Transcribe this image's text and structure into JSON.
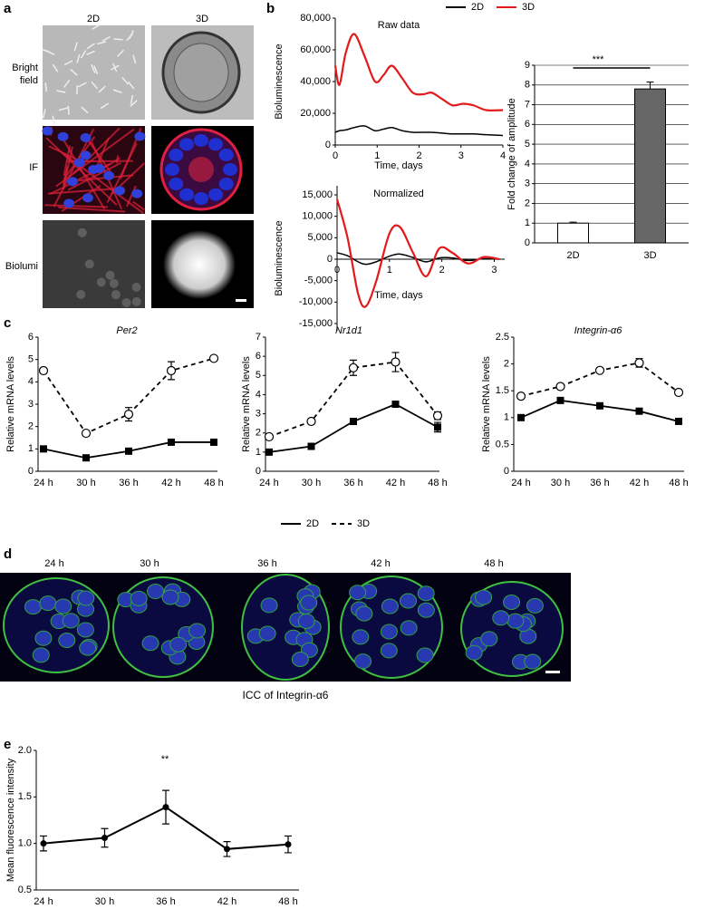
{
  "figure": {
    "panel_labels": [
      "a",
      "b",
      "c",
      "d",
      "e"
    ],
    "a": {
      "columns": [
        "2D",
        "3D"
      ],
      "rows": [
        "Bright field",
        "IF",
        "Biolumi"
      ]
    },
    "d": {
      "times": [
        "24 h",
        "30 h",
        "36 h",
        "42 h",
        "48 h"
      ],
      "caption": "ICC of Integrin-α6"
    }
  },
  "chart_data": [
    {
      "type": "line",
      "title": "Raw data",
      "x_label": "Time, days",
      "y_label": "Bioluminescence",
      "x": [
        0,
        0.1,
        0.25,
        0.45,
        0.7,
        0.95,
        1.15,
        1.35,
        1.6,
        1.85,
        2.1,
        2.3,
        2.55,
        2.8,
        3.05,
        3.3,
        3.6,
        4
      ],
      "series": [
        {
          "name": "2D",
          "color": "#000000",
          "values": [
            8000,
            9000,
            9500,
            11000,
            12000,
            9000,
            10000,
            11000,
            9000,
            8000,
            8000,
            8000,
            7500,
            7000,
            7000,
            7000,
            6500,
            6000
          ]
        },
        {
          "name": "3D",
          "color": "#e31a1c",
          "values": [
            50000,
            38000,
            58000,
            70000,
            56000,
            40000,
            44000,
            50000,
            42000,
            33000,
            32000,
            33000,
            29000,
            25000,
            26000,
            25000,
            22000,
            22000
          ]
        }
      ],
      "xlim": [
        0,
        4
      ],
      "xticks": [
        0,
        1,
        2,
        3,
        4
      ],
      "ylim": [
        0,
        80000
      ],
      "yticks": [
        0,
        {
          "value": 20000,
          "label": "20,000"
        },
        {
          "value": 40000,
          "label": "40,000"
        },
        {
          "value": 60000,
          "label": "60,000"
        },
        {
          "value": 80000,
          "label": "80,000"
        }
      ]
    },
    {
      "type": "line",
      "title": "Normalized",
      "x_label": "Time, days",
      "y_label": "Bioluminescence",
      "x": [
        0,
        0.2,
        0.4,
        0.55,
        0.75,
        1.0,
        1.2,
        1.45,
        1.7,
        1.95,
        2.2,
        2.5,
        2.8,
        3.1
      ],
      "series": [
        {
          "color": "#000000",
          "values": [
            1500,
            800,
            -600,
            -1200,
            -600,
            700,
            1200,
            400,
            -600,
            300,
            300,
            -300,
            100,
            0
          ]
        },
        {
          "color": "#e31a1c",
          "values": [
            14000,
            5000,
            -8000,
            -11000,
            -5000,
            6000,
            7500,
            1500,
            -4000,
            2500,
            1500,
            -1000,
            500,
            0
          ]
        }
      ],
      "xlim": [
        0,
        3.2
      ],
      "xticks": [
        0,
        1,
        2,
        3
      ],
      "ylim": [
        -15000,
        15000
      ],
      "yticks": [
        {
          "value": -15000,
          "label": "-15,000"
        },
        {
          "value": -10000,
          "label": "-10,000"
        },
        {
          "value": -5000,
          "label": "-5,000"
        },
        0,
        {
          "value": 5000,
          "label": "5,000"
        },
        {
          "value": 10000,
          "label": "10,000"
        },
        {
          "value": 15000,
          "label": "15,000"
        }
      ]
    },
    {
      "type": "bar",
      "y_label": "Fold change of amplitude",
      "categories": [
        "2D",
        "3D"
      ],
      "values": [
        1,
        7.8
      ],
      "errors": [
        0.05,
        0.35
      ],
      "colors": [
        "#ffffff",
        "#666666"
      ],
      "ylim": [
        0,
        9
      ],
      "yticks": [
        0,
        1,
        2,
        3,
        4,
        5,
        6,
        7,
        8,
        9
      ],
      "grid": true,
      "annotation": "***"
    },
    {
      "type": "line",
      "title": "Per2",
      "y_label": "Relative mRNA levels",
      "categories": [
        "24 h",
        "30 h",
        "36 h",
        "42 h",
        "48 h"
      ],
      "series": [
        {
          "name": "2D",
          "color": "#000000",
          "marker": "square",
          "dashed": false,
          "values": [
            1.0,
            0.6,
            0.9,
            1.3,
            1.3
          ],
          "errors": [
            0.05,
            0.05,
            0.05,
            0.05,
            0.05
          ]
        },
        {
          "name": "3D",
          "color": "#000000",
          "marker": "circle",
          "dashed": true,
          "values": [
            4.5,
            1.7,
            2.55,
            4.5,
            5.05
          ],
          "errors": [
            0.05,
            0.1,
            0.3,
            0.4,
            0.05
          ]
        }
      ],
      "ylim": [
        0,
        6
      ],
      "yticks": [
        0,
        1,
        2,
        3,
        4,
        5,
        6
      ]
    },
    {
      "type": "line",
      "title": "Nr1d1",
      "y_label": "Relative mRNA levels",
      "categories": [
        "24 h",
        "30 h",
        "36 h",
        "42 h",
        "48 h"
      ],
      "series": [
        {
          "color": "#000000",
          "marker": "square",
          "dashed": false,
          "values": [
            1.0,
            1.3,
            2.6,
            3.5,
            2.3
          ],
          "errors": [
            0.05,
            0.05,
            0.05,
            0.05,
            0.25
          ]
        },
        {
          "color": "#000000",
          "marker": "circle",
          "dashed": true,
          "values": [
            1.8,
            2.6,
            5.4,
            5.7,
            2.9
          ],
          "errors": [
            0.05,
            0.05,
            0.4,
            0.5,
            0.2
          ]
        }
      ],
      "ylim": [
        0,
        7
      ],
      "yticks": [
        0,
        1,
        2,
        3,
        4,
        5,
        6,
        7
      ]
    },
    {
      "type": "line",
      "title": "Integrin-α6",
      "y_label": "Relative mRNA levels",
      "categories": [
        "24 h",
        "30 h",
        "36 h",
        "42 h",
        "48 h"
      ],
      "series": [
        {
          "color": "#000000",
          "marker": "square",
          "dashed": false,
          "values": [
            1.0,
            1.32,
            1.22,
            1.12,
            0.93
          ],
          "errors": [
            0.02,
            0.02,
            0.02,
            0.02,
            0.02
          ]
        },
        {
          "color": "#000000",
          "marker": "circle",
          "dashed": true,
          "values": [
            1.4,
            1.58,
            1.88,
            2.02,
            1.47
          ],
          "errors": [
            0.02,
            0.02,
            0.02,
            0.08,
            0.02
          ]
        }
      ],
      "ylim": [
        0,
        2.5
      ],
      "yticks": [
        0,
        0.5,
        1,
        1.5,
        2,
        2.5
      ]
    },
    {
      "type": "line",
      "y_label": "Mean fluorescence intensity",
      "categories": [
        "24 h",
        "30 h",
        "36 h",
        "42 h",
        "48 h"
      ],
      "series": [
        {
          "color": "#000000",
          "marker": "dot",
          "dashed": false,
          "values": [
            1.0,
            1.06,
            1.39,
            0.94,
            0.99
          ],
          "errors": [
            0.08,
            0.1,
            0.18,
            0.08,
            0.09
          ]
        }
      ],
      "ylim": [
        0.5,
        2.0
      ],
      "yticks": [
        0.5,
        {
          "value": 1.0,
          "label": "1.0"
        },
        1.5,
        {
          "value": 2.0,
          "label": "2.0"
        }
      ],
      "annotation": "**"
    }
  ]
}
